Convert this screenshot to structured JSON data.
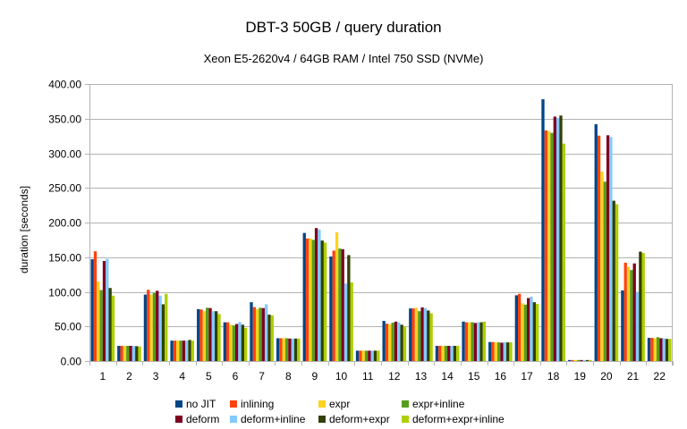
{
  "chart_data": {
    "type": "bar",
    "title": "DBT-3 50GB / query duration",
    "subtitle": "Xeon E5-2620v4 / 64GB RAM / Intel 750 SSD (NVMe)",
    "xlabel": "",
    "ylabel": "duration [seconds]",
    "ylim": [
      0,
      400
    ],
    "yticks": [
      "0.00",
      "50.00",
      "100.00",
      "150.00",
      "200.00",
      "250.00",
      "300.00",
      "350.00",
      "400.00"
    ],
    "ytick_values": [
      0,
      50,
      100,
      150,
      200,
      250,
      300,
      350,
      400
    ],
    "grid": true,
    "legend_position": "bottom",
    "categories": [
      "1",
      "2",
      "3",
      "4",
      "5",
      "6",
      "7",
      "8",
      "9",
      "10",
      "11",
      "12",
      "13",
      "14",
      "15",
      "16",
      "17",
      "18",
      "19",
      "20",
      "21",
      "22"
    ],
    "series": [
      {
        "name": "no JIT",
        "color": "#004586",
        "values": [
          147,
          22,
          96,
          29.5,
          75,
          56,
          85,
          33,
          185,
          151,
          15,
          58,
          76,
          22,
          57,
          27.5,
          95,
          378,
          1.5,
          342,
          102,
          33.5
        ]
      },
      {
        "name": "inlining",
        "color": "#ff420e",
        "values": [
          158.5,
          22,
          103,
          29.5,
          74.5,
          56,
          78,
          33,
          177,
          159.5,
          15,
          54,
          76,
          22,
          56,
          27.5,
          97,
          333,
          1.5,
          325.5,
          142,
          33.5
        ]
      },
      {
        "name": "expr",
        "color": "#ffd320",
        "values": [
          115,
          22,
          96,
          29.5,
          72,
          52.5,
          75,
          33,
          177,
          186,
          15,
          53,
          77,
          22,
          56,
          27,
          83.5,
          332,
          1.5,
          273.5,
          136,
          33
        ]
      },
      {
        "name": "expr+inline",
        "color": "#579d1c",
        "values": [
          102.5,
          22,
          98.5,
          29.5,
          77,
          51.5,
          77,
          33,
          175,
          162.5,
          15,
          55.5,
          72,
          22,
          56,
          27,
          81.5,
          329.5,
          1.5,
          259,
          131.5,
          34.5
        ]
      },
      {
        "name": "deform",
        "color": "#7e0021",
        "values": [
          144.5,
          22,
          101.5,
          29.5,
          76.5,
          53.5,
          76.5,
          32.5,
          192,
          161.5,
          15,
          57,
          77.5,
          22,
          55,
          26.5,
          91,
          353,
          1.5,
          326,
          141,
          33
        ]
      },
      {
        "name": "deform+inline",
        "color": "#83caff",
        "values": [
          147.5,
          22,
          94.5,
          29.5,
          72,
          56.5,
          82,
          32.5,
          190,
          112,
          15,
          56,
          76.5,
          22,
          56,
          27,
          93,
          351,
          1.5,
          323.5,
          100,
          33
        ]
      },
      {
        "name": "deform+expr",
        "color": "#314004",
        "values": [
          105.5,
          21.5,
          82,
          30.5,
          72,
          52.5,
          67,
          32.5,
          174,
          153,
          15,
          52.5,
          73,
          22,
          56,
          27,
          85,
          354.5,
          1.5,
          231.5,
          158,
          32
        ]
      },
      {
        "name": "deform+expr+inline",
        "color": "#aecf00",
        "values": [
          94.5,
          21,
          97,
          29.5,
          68,
          48,
          66,
          32.5,
          171,
          113.5,
          15,
          50,
          69,
          22,
          57,
          27,
          82.5,
          314,
          1.5,
          226.5,
          156,
          32
        ]
      }
    ]
  }
}
